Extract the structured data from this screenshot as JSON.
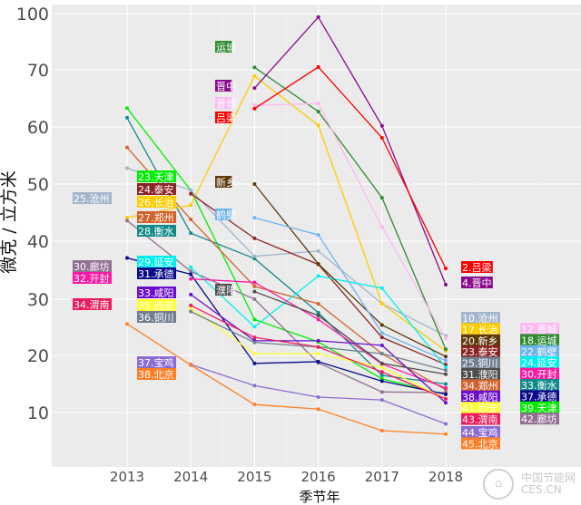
{
  "chart_data": {
    "type": "line",
    "title": "",
    "xlabel": "季节年",
    "ylabel": "微克 / 立方米",
    "x": [
      "2013",
      "2014",
      "2015",
      "2016",
      "2017",
      "2018"
    ],
    "yticks": [
      10,
      20,
      30,
      40,
      50,
      60,
      70,
      100
    ],
    "ylim": [
      2,
      100
    ],
    "grid": true,
    "legend": "none (inline labels)",
    "series": [
      {
        "name": "天津",
        "color": "#00ee00",
        "start_label": "23.天津",
        "end_label": "39.天津",
        "values": [
          63.3,
          48.9,
          26.4,
          22.4,
          15.9,
          13.2
        ]
      },
      {
        "name": "衡水",
        "color": "#138a8a",
        "start_label": "28.衡水",
        "end_label": "33.衡水",
        "values": [
          61.6,
          41.4,
          37.0,
          27.6,
          16.5,
          15.0
        ]
      },
      {
        "name": "郑州",
        "color": "#d2622a",
        "start_label": "27.郑州",
        "end_label": "34.郑州",
        "values": [
          56.4,
          43.8,
          32.2,
          29.2,
          20.3,
          14.0
        ]
      },
      {
        "name": "沧州",
        "color": "#a3b5cb",
        "start_label": "25.沧州",
        "end_label": "10.沧州",
        "values": [
          52.8,
          48.9,
          37.4,
          38.3,
          29.2,
          23.5
        ]
      },
      {
        "name": "长治",
        "color": "#ffcc00",
        "start_label": "26.长治",
        "end_label": "17.长治",
        "values": [
          44.1,
          46.3,
          68.9,
          60.3,
          29.2,
          20.8
        ]
      },
      {
        "name": "泰安",
        "color": "#8b2525",
        "start_label": "24.泰安",
        "end_label": "23.泰安",
        "values": [
          null,
          48.3,
          40.5,
          36.0,
          23.2,
          18.4
        ]
      },
      {
        "name": "廊坊",
        "color": "#927093",
        "start_label": "30.廊坊",
        "end_label": "42.廊坊",
        "values": [
          43.6,
          34.8,
          30.0,
          18.7,
          13.6,
          13.5
        ]
      },
      {
        "name": "承德",
        "color": "#0a0a8c",
        "start_label": "31.承德",
        "end_label": "37.承德",
        "values": [
          37.1,
          34.3,
          18.6,
          18.9,
          15.5,
          13.2
        ]
      },
      {
        "name": "延安",
        "color": "#00f0f0",
        "start_label": "29.延安",
        "end_label": "24.延安",
        "values": [
          null,
          35.5,
          25.1,
          34.0,
          31.9,
          17.9
        ]
      },
      {
        "name": "开封",
        "color": "#ff1aa3",
        "start_label": "32.开封",
        "end_label": "30.开封",
        "values": [
          null,
          33.5,
          32.9,
          26.4,
          18.5,
          14.3
        ]
      },
      {
        "name": "咸阳",
        "color": "#6a0fd0",
        "start_label": "33.咸阳",
        "end_label": "38.咸阳",
        "values": [
          null,
          30.8,
          22.6,
          22.6,
          21.8,
          11.7
        ]
      },
      {
        "name": "西安",
        "color": "#ffff33",
        "start_label": "35.西安",
        "end_label": "41.西安",
        "values": [
          null,
          28.4,
          20.3,
          20.3,
          17.9,
          12.4
        ]
      },
      {
        "name": "铜川",
        "color": "#708090",
        "start_label": "36.铜川",
        "end_label": "25.铜川",
        "values": [
          null,
          27.8,
          22.3,
          21.5,
          20.3,
          17.4
        ]
      },
      {
        "name": "渭南",
        "color": "#ee1c5c",
        "start_label": "34.渭南",
        "end_label": "43.渭南",
        "values": [
          null,
          28.9,
          23.2,
          21.5,
          17.1,
          12.4
        ]
      },
      {
        "name": "宝鸡",
        "color": "#8c6bd4",
        "start_label": "37.宝鸡",
        "end_label": "44.宝鸡",
        "values": [
          null,
          18.4,
          14.7,
          12.7,
          12.2,
          8.0
        ]
      },
      {
        "name": "北京",
        "color": "#ff7f27",
        "start_label": "38.北京",
        "end_label": "45.北京",
        "values": [
          25.6,
          18.3,
          11.4,
          10.6,
          6.8,
          6.2
        ]
      },
      {
        "name": "运城",
        "color": "#2e8b2e",
        "start_label": "运城",
        "end_label": "18.运城",
        "values": [
          null,
          null,
          71.3,
          62.7,
          47.6,
          21.1
        ]
      },
      {
        "name": "晋中",
        "color": "#8b0a8b",
        "start_label": "晋中",
        "end_label": "4.晋中",
        "values": [
          null,
          null,
          66.8,
          98.1,
          60.2,
          32.5
        ]
      },
      {
        "name": "晋城",
        "color": "#ffb8f2",
        "start_label": "晋城",
        "end_label": "12.晋城",
        "values": [
          null,
          null,
          63.8,
          64.1,
          42.5,
          23.0
        ]
      },
      {
        "name": "吕梁",
        "color": "#ff0000",
        "start_label": "吕梁",
        "end_label": "2.吕梁",
        "values": [
          null,
          null,
          63.2,
          71.5,
          58.1,
          35.3
        ]
      },
      {
        "name": "新乡",
        "color": "#5c3a0a",
        "start_label": "新乡",
        "end_label": "20.新乡",
        "values": [
          null,
          null,
          50.0,
          36.1,
          25.4,
          19.8
        ]
      },
      {
        "name": "鹤壁",
        "color": "#6cb4f0",
        "start_label": "鹤壁",
        "end_label": "22.鹤壁",
        "values": [
          null,
          null,
          44.1,
          41.1,
          24.0,
          19.1
        ]
      },
      {
        "name": "濮阳",
        "color": "#4d4d4d",
        "start_label": "濮阳",
        "end_label": "31.濮阳",
        "values": [
          null,
          null,
          31.3,
          27.1,
          18.6,
          16.7
        ]
      }
    ],
    "start_labels_order": [
      "23.天津",
      "24.泰安",
      "26.长治",
      "27.郑州",
      "28.衡水",
      "29.延安",
      "31.承德",
      "33.咸阳",
      "35.西安",
      "36.铜川",
      "37.宝鸡",
      "38.北京"
    ],
    "far_left_labels": [
      "25.沧州",
      "30.廊坊",
      "32.开封",
      "34.渭南"
    ],
    "mid_labels": [
      "运城",
      "晋中",
      "晋城",
      "吕梁",
      "新乡",
      "鹤壁",
      "濮阳"
    ],
    "end_labels_top": [
      "2.吕梁",
      "4.晋中"
    ],
    "end_labels_col1": [
      "10.沧州",
      "17.长治",
      "20.新乡",
      "23.泰安",
      "25.铜川",
      "31.濮阳",
      "34.郑州",
      "38.咸阳",
      "41.西安",
      "43.渭南",
      "44.宝鸡",
      "45.北京"
    ],
    "end_labels_col2": [
      "12.晋城",
      "18.运城",
      "22.鹤壁",
      "24.延安",
      "30.开封",
      "33.衡水",
      "37.承德",
      "39.天津",
      "42.廊坊"
    ]
  },
  "watermark": {
    "line1": "中国节能网",
    "line2": "CES.CN"
  }
}
